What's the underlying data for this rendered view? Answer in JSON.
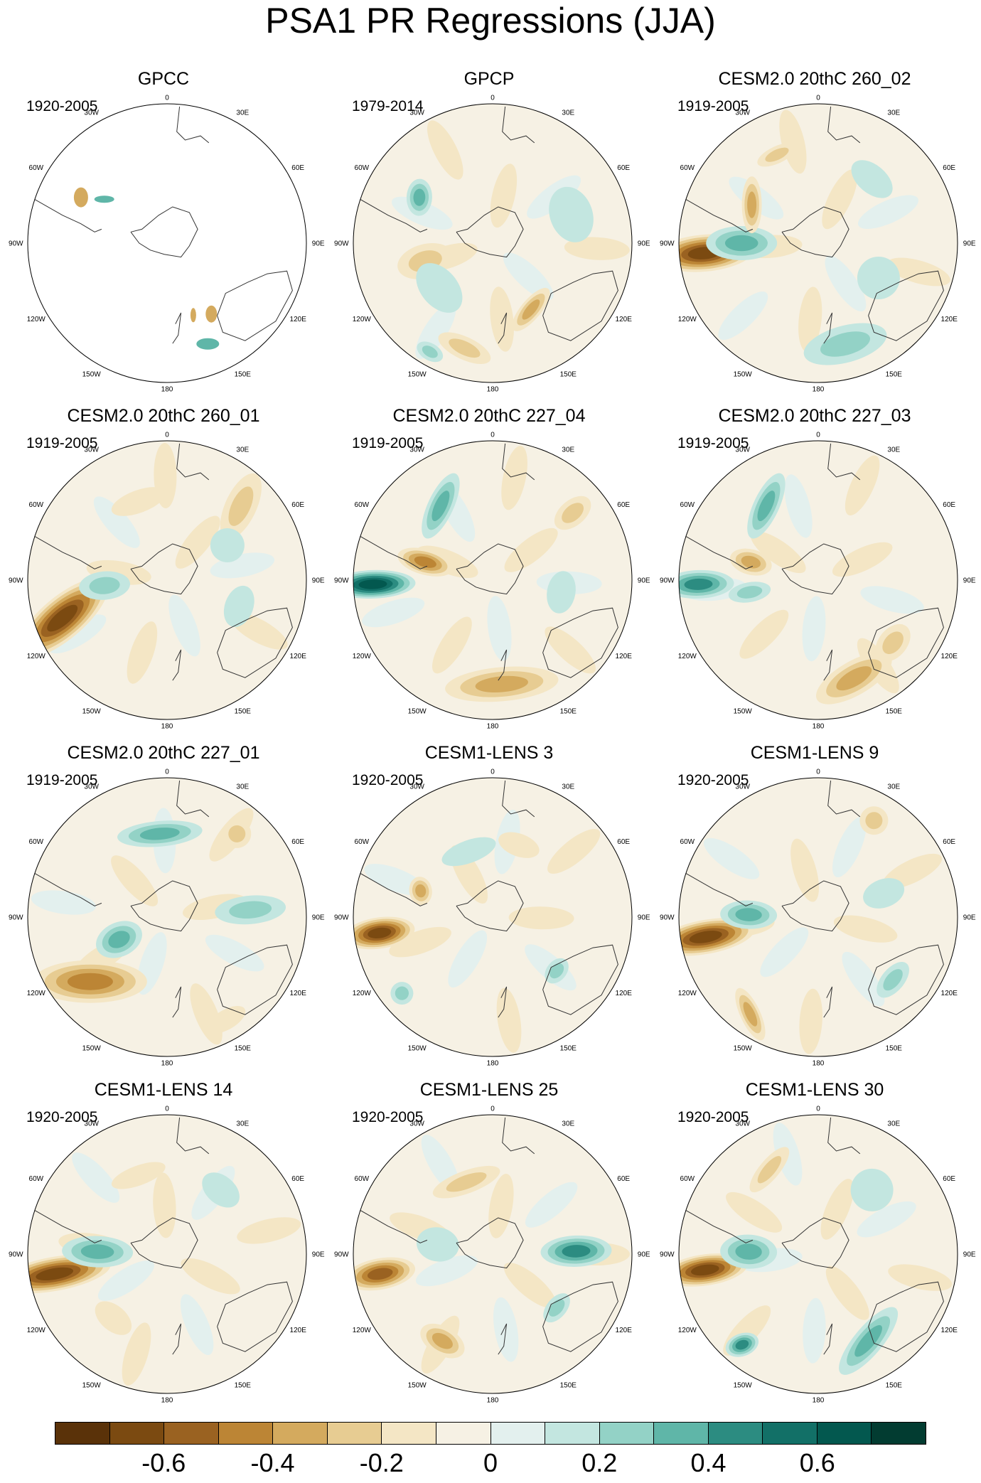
{
  "title": "PSA1 PR Regressions (JJA)",
  "longitude_labels": [
    "0",
    "30E",
    "60E",
    "90E",
    "120E",
    "150E",
    "180",
    "150W",
    "120W",
    "90W",
    "60W",
    "30W"
  ],
  "panels": [
    {
      "name": "GPCC",
      "period": "1920-2005"
    },
    {
      "name": "GPCP",
      "period": "1979-2014"
    },
    {
      "name": "CESM2.0 20thC 260_02",
      "period": "1919-2005"
    },
    {
      "name": "CESM2.0 20thC 260_01",
      "period": "1919-2005"
    },
    {
      "name": "CESM2.0 20thC 227_04",
      "period": "1919-2005"
    },
    {
      "name": "CESM2.0 20thC 227_03",
      "period": "1919-2005"
    },
    {
      "name": "CESM2.0 20thC 227_01",
      "period": "1919-2005"
    },
    {
      "name": "CESM1-LENS 3",
      "period": "1920-2005"
    },
    {
      "name": "CESM1-LENS 9",
      "period": "1920-2005"
    },
    {
      "name": "CESM1-LENS 14",
      "period": "1920-2005"
    },
    {
      "name": "CESM1-LENS 25",
      "period": "1920-2005"
    },
    {
      "name": "CESM1-LENS 30",
      "period": "1920-2005"
    }
  ],
  "colorbar": {
    "colors": [
      "#5a3209",
      "#7b4a11",
      "#9a6221",
      "#bc8535",
      "#d4aa5e",
      "#e7cc92",
      "#f4e6c5",
      "#f6f1e4",
      "#e3f0ee",
      "#c3e6e0",
      "#93d2c6",
      "#5fb6a8",
      "#2c8c81",
      "#127067",
      "#03584f",
      "#023c31"
    ],
    "labels": [
      "-0.6",
      "-0.4",
      "-0.2",
      "0",
      "0.2",
      "0.4",
      "0.6"
    ]
  }
}
